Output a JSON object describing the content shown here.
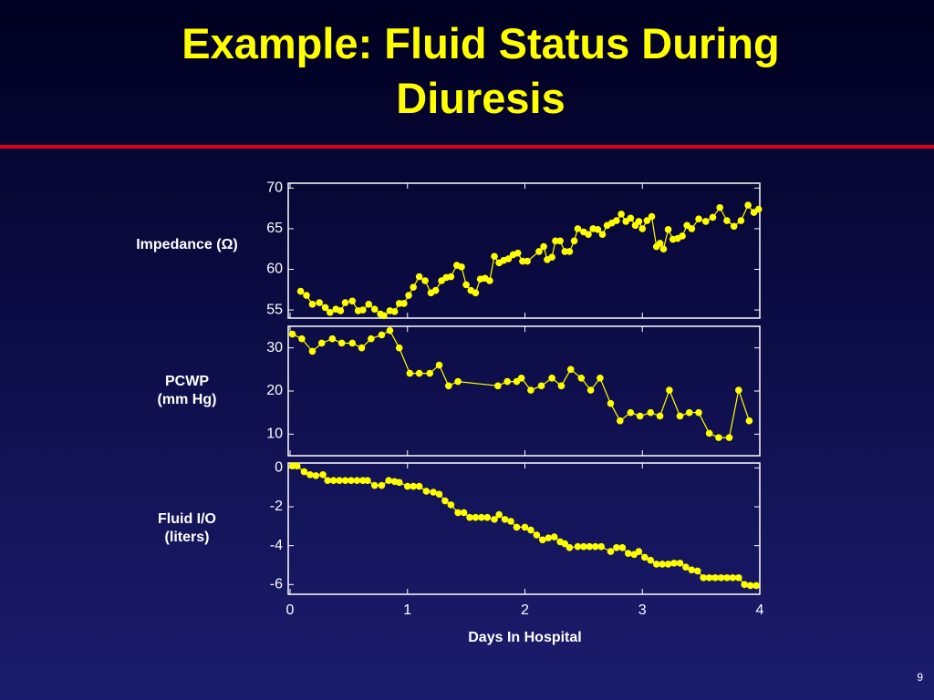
{
  "title": "Example: Fluid Status During Diuresis",
  "page_number": "9",
  "chart_data": [
    {
      "type": "line",
      "ylabel": [
        "Impedance (Ω)"
      ],
      "color": "#ffff00",
      "xlim": [
        0,
        4
      ],
      "ylim": [
        54,
        70.6
      ],
      "yticks": [
        55,
        60,
        65,
        70
      ],
      "x": [
        0.09,
        0.14,
        0.19,
        0.25,
        0.3,
        0.34,
        0.39,
        0.43,
        0.47,
        0.53,
        0.58,
        0.62,
        0.67,
        0.72,
        0.77,
        0.8,
        0.85,
        0.89,
        0.93,
        0.97,
        1.01,
        1.05,
        1.1,
        1.15,
        1.2,
        1.24,
        1.29,
        1.33,
        1.37,
        1.42,
        1.46,
        1.5,
        1.54,
        1.58,
        1.62,
        1.66,
        1.7,
        1.74,
        1.78,
        1.82,
        1.86,
        1.9,
        1.94,
        1.98,
        2.02,
        2.12,
        2.16,
        2.19,
        2.23,
        2.26,
        2.3,
        2.34,
        2.38,
        2.42,
        2.45,
        2.5,
        2.54,
        2.58,
        2.62,
        2.66,
        2.7,
        2.74,
        2.78,
        2.82,
        2.86,
        2.9,
        2.94,
        2.97,
        3.0,
        3.04,
        3.08,
        3.12,
        3.15,
        3.18,
        3.22,
        3.26,
        3.3,
        3.34,
        3.38,
        3.42,
        3.48,
        3.54,
        3.6,
        3.66,
        3.72,
        3.78,
        3.84,
        3.9,
        3.95,
        3.99
      ],
      "values": [
        57.3,
        56.8,
        55.7,
        55.9,
        55.3,
        54.7,
        55.1,
        54.9,
        55.9,
        56.1,
        54.9,
        55.0,
        55.7,
        55.1,
        54.5,
        54.3,
        54.9,
        54.8,
        55.8,
        55.8,
        56.8,
        57.8,
        59.1,
        58.6,
        57.1,
        57.4,
        58.6,
        59.0,
        59.1,
        60.5,
        60.3,
        58.1,
        57.4,
        57.1,
        58.8,
        58.9,
        58.6,
        61.6,
        60.8,
        61.1,
        61.3,
        61.8,
        62.0,
        61.0,
        61.0,
        62.2,
        62.8,
        61.2,
        61.5,
        63.5,
        63.5,
        62.2,
        62.2,
        63.5,
        65.0,
        64.6,
        64.3,
        65.0,
        64.9,
        64.3,
        65.4,
        65.7,
        66.0,
        66.8,
        65.9,
        66.3,
        65.4,
        65.9,
        65.0,
        66.0,
        66.5,
        62.8,
        63.2,
        62.5,
        64.9,
        63.7,
        63.8,
        64.1,
        65.4,
        65.0,
        66.2,
        65.9,
        66.4,
        67.6,
        66.0,
        65.3,
        66.0,
        67.9,
        67.0,
        67.4
      ]
    },
    {
      "type": "line",
      "ylabel": [
        "PCWP",
        "(mm Hg)"
      ],
      "color": "#ffff00",
      "xlim": [
        0,
        4
      ],
      "ylim": [
        5,
        35
      ],
      "yticks": [
        10,
        20,
        30
      ],
      "x": [
        0.02,
        0.1,
        0.19,
        0.27,
        0.36,
        0.44,
        0.53,
        0.61,
        0.69,
        0.78,
        0.85,
        0.93,
        1.02,
        1.1,
        1.19,
        1.27,
        1.35,
        1.43,
        1.77,
        1.85,
        1.93,
        1.97,
        2.05,
        2.14,
        2.23,
        2.31,
        2.39,
        2.48,
        2.56,
        2.64,
        2.73,
        2.81,
        2.9,
        2.98,
        3.07,
        3.15,
        3.23,
        3.32,
        3.4,
        3.48,
        3.57,
        3.65,
        3.74,
        3.82,
        3.91
      ],
      "values": [
        33.2,
        32.1,
        29.2,
        31.1,
        32.1,
        31.1,
        31.1,
        30.0,
        32.1,
        33.0,
        34.0,
        30.0,
        24.1,
        24.1,
        24.1,
        26.0,
        21.2,
        22.2,
        21.2,
        22.2,
        22.2,
        23.0,
        20.2,
        21.2,
        23.0,
        21.2,
        25.0,
        23.0,
        20.2,
        23.0,
        17.1,
        13.1,
        15.0,
        14.2,
        15.0,
        14.2,
        20.2,
        14.2,
        15.0,
        15.0,
        10.2,
        9.2,
        9.2,
        20.2,
        13.1
      ]
    },
    {
      "type": "line",
      "ylabel": [
        "Fluid I/O",
        "(liters)"
      ],
      "xlabel": "Days In Hospital",
      "color": "#ffff00",
      "xlim": [
        0,
        4
      ],
      "xticks": [
        0,
        1,
        2,
        3,
        4
      ],
      "ylim": [
        -6.5,
        0.25
      ],
      "yticks": [
        0,
        -2,
        -4,
        -6
      ],
      "x": [
        0.02,
        0.06,
        0.12,
        0.17,
        0.22,
        0.28,
        0.32,
        0.37,
        0.42,
        0.47,
        0.52,
        0.57,
        0.62,
        0.66,
        0.72,
        0.78,
        0.84,
        0.89,
        0.93,
        1.0,
        1.05,
        1.1,
        1.16,
        1.22,
        1.27,
        1.32,
        1.37,
        1.43,
        1.48,
        1.53,
        1.58,
        1.63,
        1.68,
        1.74,
        1.78,
        1.83,
        1.88,
        1.93,
        2.0,
        2.05,
        2.1,
        2.15,
        2.2,
        2.25,
        2.3,
        2.34,
        2.38,
        2.45,
        2.5,
        2.55,
        2.6,
        2.65,
        2.73,
        2.78,
        2.83,
        2.88,
        2.93,
        2.97,
        3.02,
        3.07,
        3.12,
        3.17,
        3.22,
        3.27,
        3.32,
        3.37,
        3.42,
        3.47,
        3.52,
        3.57,
        3.62,
        3.67,
        3.72,
        3.77,
        3.82,
        3.87,
        3.92,
        3.97
      ],
      "values": [
        0.1,
        0.1,
        -0.2,
        -0.35,
        -0.4,
        -0.35,
        -0.65,
        -0.65,
        -0.65,
        -0.65,
        -0.65,
        -0.65,
        -0.65,
        -0.65,
        -0.9,
        -0.9,
        -0.65,
        -0.7,
        -0.75,
        -0.95,
        -0.95,
        -0.95,
        -1.2,
        -1.25,
        -1.35,
        -1.7,
        -1.9,
        -2.3,
        -2.3,
        -2.55,
        -2.55,
        -2.55,
        -2.55,
        -2.65,
        -2.4,
        -2.65,
        -2.75,
        -3.05,
        -3.05,
        -3.2,
        -3.45,
        -3.7,
        -3.6,
        -3.55,
        -3.8,
        -3.9,
        -4.1,
        -4.05,
        -4.05,
        -4.05,
        -4.05,
        -4.05,
        -4.3,
        -4.1,
        -4.1,
        -4.4,
        -4.45,
        -4.3,
        -4.6,
        -4.75,
        -4.95,
        -4.95,
        -4.95,
        -4.9,
        -4.9,
        -5.1,
        -5.25,
        -5.3,
        -5.65,
        -5.65,
        -5.65,
        -5.65,
        -5.65,
        -5.65,
        -5.65,
        -6.0,
        -6.05,
        -6.05
      ]
    }
  ]
}
